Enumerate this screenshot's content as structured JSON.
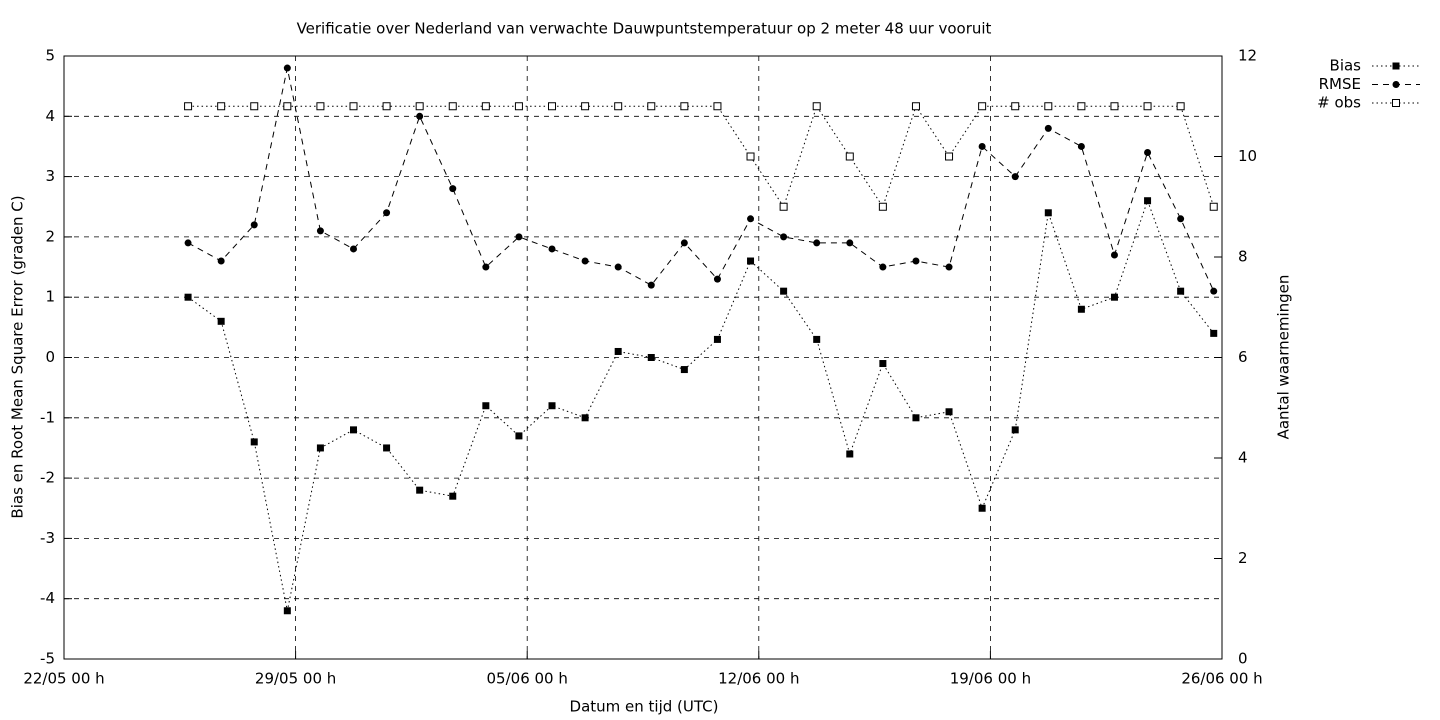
{
  "chart_data": {
    "type": "line",
    "title": "Verificatie over Nederland van verwachte Dauwpuntstemperatuur op 2 meter 48 uur vooruit",
    "xlabel": "Datum en tijd (UTC)",
    "ylabel": "Bias en Root Mean Square Error (graden C)",
    "y2label": "Aantal waarnemingen",
    "x": [
      "25/05 18 h",
      "26/05 18 h",
      "27/05 18 h",
      "28/05 18 h",
      "29/05 18 h",
      "30/05 18 h",
      "31/05 18 h",
      "01/06 18 h",
      "02/06 18 h",
      "03/06 18 h",
      "04/06 18 h",
      "05/06 18 h",
      "06/06 18 h",
      "07/06 18 h",
      "08/06 18 h",
      "09/06 18 h",
      "10/06 18 h",
      "11/06 18 h",
      "12/06 18 h",
      "13/06 18 h",
      "14/06 18 h",
      "15/06 18 h",
      "16/06 18 h",
      "17/06 18 h",
      "18/06 18 h",
      "19/06 18 h",
      "20/06 18 h",
      "21/06 18 h",
      "22/06 18 h",
      "23/06 18 h",
      "24/06 18 h",
      "25/06 18 h"
    ],
    "series": [
      {
        "name": "Bias",
        "color": "#000000",
        "dash": "dotted",
        "marker": "filled-square",
        "values": [
          1.0,
          0.6,
          -1.4,
          -4.2,
          -1.5,
          -1.2,
          -1.5,
          -2.2,
          -2.3,
          -0.8,
          -1.3,
          -0.8,
          -1.0,
          0.1,
          0.0,
          -0.2,
          0.3,
          1.6,
          1.1,
          0.3,
          -1.6,
          -0.1,
          -1.0,
          -0.9,
          -2.5,
          -1.2,
          2.4,
          0.8,
          1.0,
          2.6,
          1.1,
          0.4
        ]
      },
      {
        "name": "RMSE",
        "color": "#000000",
        "dash": "dashed",
        "marker": "filled-circle",
        "values": [
          1.9,
          1.6,
          2.2,
          4.8,
          2.1,
          1.8,
          2.4,
          4.0,
          2.8,
          1.5,
          2.0,
          1.8,
          1.6,
          1.5,
          1.2,
          1.9,
          1.3,
          2.3,
          2.0,
          1.9,
          1.9,
          1.5,
          1.6,
          1.5,
          3.5,
          3.0,
          3.8,
          3.5,
          1.7,
          3.4,
          2.3,
          1.1
        ]
      },
      {
        "name": "# obs",
        "color": "#000000",
        "dash": "dotted",
        "marker": "open-square",
        "axis": "y2",
        "values": [
          11,
          11,
          11,
          11,
          11,
          11,
          11,
          11,
          11,
          11,
          11,
          11,
          11,
          11,
          11,
          11,
          11,
          10,
          9,
          11,
          10,
          9,
          11,
          10,
          11,
          11,
          11,
          11,
          11,
          11,
          11,
          9
        ]
      }
    ],
    "xlim": [
      "22/05 00 h",
      "26/06 00 h"
    ],
    "xticks": [
      "22/05 00 h",
      "29/05 00 h",
      "05/06 00 h",
      "12/06 00 h",
      "19/06 00 h",
      "26/06 00 h"
    ],
    "ylim": [
      -5,
      5
    ],
    "yticks": [
      -5,
      -4,
      -3,
      -2,
      -1,
      0,
      1,
      2,
      3,
      4,
      5
    ],
    "y2lim": [
      0,
      12
    ],
    "y2ticks": [
      0,
      2,
      4,
      6,
      8,
      10,
      12
    ],
    "grid": true,
    "legend": "top-right-outside"
  }
}
